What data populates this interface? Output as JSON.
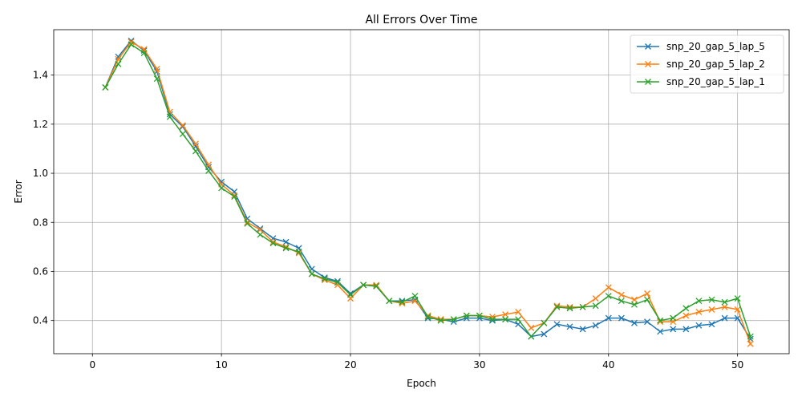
{
  "chart_data": {
    "type": "line",
    "title": "All Errors Over Time",
    "xlabel": "Epoch",
    "ylabel": "Error",
    "xlim": [
      -3,
      54
    ],
    "ylim": [
      0.265,
      1.585
    ],
    "xticks": [
      0,
      10,
      20,
      30,
      40,
      50
    ],
    "yticks": [
      0.4,
      0.6,
      0.8,
      1.0,
      1.2,
      1.4
    ],
    "ytick_labels": [
      "0.4",
      "0.6",
      "0.8",
      "1.0",
      "1.2",
      "1.4"
    ],
    "grid": true,
    "legend_position": "top-right",
    "marker": "x",
    "x": [
      1,
      2,
      3,
      4,
      5,
      6,
      7,
      8,
      9,
      10,
      11,
      12,
      13,
      14,
      15,
      16,
      17,
      18,
      19,
      20,
      21,
      22,
      23,
      24,
      25,
      26,
      27,
      28,
      29,
      30,
      31,
      32,
      33,
      34,
      35,
      36,
      37,
      38,
      39,
      40,
      41,
      42,
      43,
      44,
      45,
      46,
      47,
      48,
      49,
      50,
      51
    ],
    "series": [
      {
        "name": "snp_20_gap_5_lap_5",
        "color": "#1f77b4",
        "values": [
          1.35,
          1.475,
          1.54,
          1.5,
          1.415,
          1.24,
          1.19,
          1.11,
          1.025,
          0.965,
          0.925,
          0.815,
          0.775,
          0.735,
          0.72,
          0.695,
          0.61,
          0.575,
          0.56,
          0.51,
          0.545,
          0.54,
          0.48,
          0.48,
          0.485,
          0.41,
          0.405,
          0.395,
          0.41,
          0.41,
          0.4,
          0.405,
          0.385,
          0.335,
          0.345,
          0.385,
          0.375,
          0.365,
          0.38,
          0.41,
          0.41,
          0.39,
          0.395,
          0.355,
          0.365,
          0.365,
          0.38,
          0.385,
          0.41,
          0.41,
          0.325
        ]
      },
      {
        "name": "snp_20_gap_5_lap_2",
        "color": "#ff7f0e",
        "values": [
          1.35,
          1.465,
          1.535,
          1.505,
          1.425,
          1.25,
          1.195,
          1.12,
          1.035,
          0.955,
          0.91,
          0.8,
          0.77,
          0.72,
          0.7,
          0.675,
          0.59,
          0.565,
          0.545,
          0.49,
          0.545,
          0.545,
          0.48,
          0.47,
          0.48,
          0.42,
          0.405,
          0.405,
          0.42,
          0.42,
          0.415,
          0.425,
          0.435,
          0.37,
          0.39,
          0.46,
          0.455,
          0.455,
          0.49,
          0.535,
          0.505,
          0.485,
          0.51,
          0.395,
          0.395,
          0.42,
          0.435,
          0.445,
          0.455,
          0.445,
          0.305
        ]
      },
      {
        "name": "snp_20_gap_5_lap_1",
        "color": "#2ca02c",
        "values": [
          1.35,
          1.445,
          1.525,
          1.49,
          1.385,
          1.23,
          1.16,
          1.09,
          1.01,
          0.94,
          0.905,
          0.795,
          0.75,
          0.715,
          0.695,
          0.68,
          0.59,
          0.57,
          0.555,
          0.505,
          0.545,
          0.54,
          0.48,
          0.475,
          0.5,
          0.415,
          0.4,
          0.405,
          0.42,
          0.42,
          0.405,
          0.405,
          0.405,
          0.335,
          0.39,
          0.455,
          0.45,
          0.455,
          0.46,
          0.5,
          0.48,
          0.465,
          0.485,
          0.4,
          0.41,
          0.45,
          0.48,
          0.485,
          0.475,
          0.49,
          0.335
        ]
      }
    ]
  }
}
